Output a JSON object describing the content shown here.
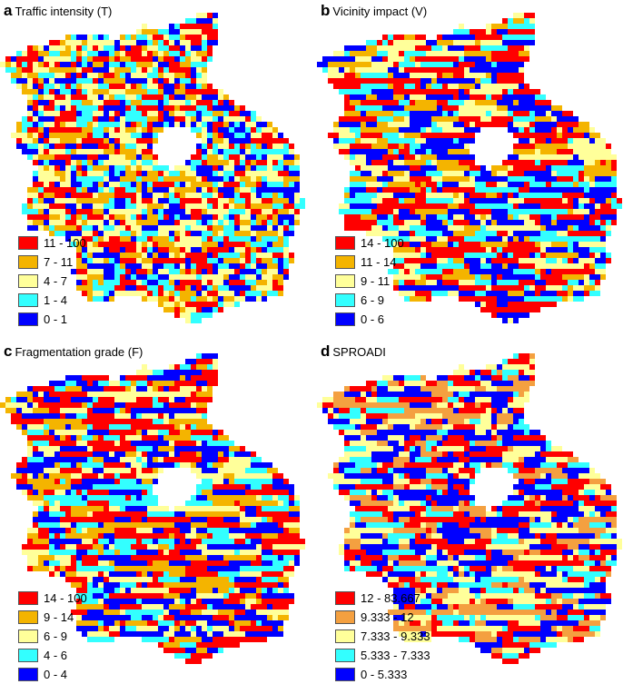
{
  "panels": [
    {
      "letter": "a",
      "title": "Traffic intensity (T)",
      "legend": [
        {
          "label": "11 - 100",
          "color": "#ff0000"
        },
        {
          "label": "7 - 11",
          "color": "#f4b400"
        },
        {
          "label": "4 - 7",
          "color": "#ffff9a"
        },
        {
          "label": "1 - 4",
          "color": "#33ffff"
        },
        {
          "label": "0 - 1",
          "color": "#0000ff"
        }
      ]
    },
    {
      "letter": "b",
      "title": "Vicinity impact (V)",
      "legend": [
        {
          "label": "14 - 100",
          "color": "#ff0000"
        },
        {
          "label": "11 - 14",
          "color": "#f4b400"
        },
        {
          "label": "9 - 11",
          "color": "#ffff9a"
        },
        {
          "label": "6 - 9",
          "color": "#33ffff"
        },
        {
          "label": "0 - 6",
          "color": "#0000ff"
        }
      ]
    },
    {
      "letter": "c",
      "title": "Fragmentation grade (F)",
      "legend": [
        {
          "label": "14 - 100",
          "color": "#ff0000"
        },
        {
          "label": "9 - 14",
          "color": "#f4b400"
        },
        {
          "label": "6 - 9",
          "color": "#ffff9a"
        },
        {
          "label": "4 - 6",
          "color": "#33ffff"
        },
        {
          "label": "0 - 4",
          "color": "#0000ff"
        }
      ]
    },
    {
      "letter": "d",
      "title": "SPROADI",
      "legend": [
        {
          "label": "12 - 83.667",
          "color": "#ff0000"
        },
        {
          "label": "9.333 - 12",
          "color": "#f4a040"
        },
        {
          "label": "7.333 - 9.333",
          "color": "#ffff9a"
        },
        {
          "label": "5.333 - 7.333",
          "color": "#33ffff"
        },
        {
          "label": "0 - 5.333",
          "color": "#0000ff"
        }
      ]
    }
  ]
}
